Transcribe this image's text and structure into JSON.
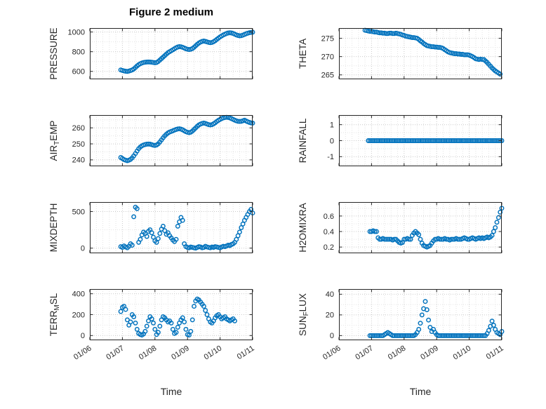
{
  "chart_data": {
    "type": "scatter",
    "title": "Figure 2 medium",
    "xlabel": "Time",
    "layout": "4x2",
    "grid": "on",
    "marker": {
      "shape": "circle",
      "color": "#0072BD"
    },
    "xlim": [
      0,
      5
    ],
    "xtick_values": [
      0,
      1,
      2,
      3,
      4,
      5
    ],
    "xtick_labels": [
      "01/06",
      "01/07",
      "01/08",
      "01/09",
      "01/10",
      "01/11"
    ],
    "xminor_step": 0.2,
    "ylabel_offset": 47,
    "charts": [
      {
        "id": "pressure",
        "ylabel": "PRESSURE",
        "ylabel_parts": [
          {
            "t": "PRESSURE"
          }
        ],
        "ylim": [
          520,
          1040
        ],
        "ytick_values": [
          600,
          800,
          1000
        ],
        "ytick_labels": [
          "600",
          "800",
          "1000"
        ],
        "yminor_step": 100,
        "show_xticklabels": false,
        "x0": 0.95,
        "dx": 0.05,
        "y": [
          615,
          610,
          605,
          602,
          600,
          603,
          608,
          615,
          625,
          640,
          655,
          668,
          678,
          685,
          690,
          693,
          695,
          696,
          695,
          693,
          690,
          688,
          690,
          700,
          715,
          730,
          745,
          760,
          775,
          790,
          800,
          810,
          820,
          830,
          840,
          848,
          852,
          850,
          845,
          838,
          830,
          825,
          822,
          825,
          832,
          845,
          860,
          875,
          888,
          898,
          905,
          908,
          905,
          900,
          895,
          892,
          895,
          902,
          912,
          925,
          938,
          950,
          960,
          970,
          978,
          985,
          990,
          992,
          990,
          985,
          978,
          970,
          965,
          962,
          963,
          968,
          975,
          982,
          988,
          993,
          996,
          998
        ]
      },
      {
        "id": "theta",
        "ylabel": "THETA",
        "ylabel_parts": [
          {
            "t": "THETA"
          }
        ],
        "ylim": [
          263.8,
          277.8
        ],
        "ytick_values": [
          265,
          270,
          275
        ],
        "ytick_labels": [
          "265",
          "270",
          "275"
        ],
        "yminor_step": 2.5,
        "show_xticklabels": false,
        "x0": 0.8,
        "dx": 0.05,
        "y": [
          277.2,
          277.1,
          277.0,
          276.9,
          276.9,
          276.8,
          276.7,
          276.7,
          276.6,
          276.5,
          276.5,
          276.4,
          276.4,
          276.3,
          276.3,
          276.4,
          276.4,
          276.3,
          276.3,
          276.4,
          276.3,
          276.2,
          276.1,
          275.9,
          275.8,
          275.6,
          275.5,
          275.4,
          275.3,
          275.2,
          275.2,
          275.1,
          275.0,
          274.7,
          274.3,
          274.0,
          273.6,
          273.3,
          273.0,
          272.9,
          272.8,
          272.7,
          272.7,
          272.6,
          272.6,
          272.5,
          272.5,
          272.4,
          272.2,
          271.9,
          271.6,
          271.3,
          271.1,
          271.0,
          270.9,
          270.8,
          270.8,
          270.7,
          270.7,
          270.6,
          270.6,
          270.5,
          270.5,
          270.5,
          270.4,
          270.2,
          270.0,
          269.7,
          269.4,
          269.3,
          269.2,
          269.3,
          269.2,
          269.2,
          268.8,
          268.4,
          267.9,
          267.4,
          266.9,
          266.5,
          266.1,
          265.8,
          265.5,
          265.2
        ]
      },
      {
        "id": "airtemp",
        "ylabel": "AIR_TEMP",
        "ylabel_parts": [
          {
            "t": "AIR"
          },
          {
            "t": "T",
            "sub": true
          },
          {
            "t": "EMP"
          }
        ],
        "ylim": [
          236,
          268
        ],
        "ytick_values": [
          240,
          250,
          260
        ],
        "ytick_labels": [
          "240",
          "250",
          "260"
        ],
        "yminor_step": 5,
        "show_xticklabels": false,
        "x0": 0.95,
        "dx": 0.05,
        "y": [
          241.5,
          240.8,
          240.2,
          239.8,
          239.5,
          239.8,
          240.3,
          241.2,
          242.5,
          244,
          245.5,
          247,
          248,
          248.8,
          249.3,
          249.6,
          249.8,
          249.9,
          249.8,
          249.5,
          249.2,
          249,
          249.3,
          250,
          251.2,
          252.5,
          253.8,
          255,
          256,
          256.8,
          257.4,
          257.8,
          258.2,
          258.6,
          259,
          259.3,
          259.4,
          259.2,
          258.8,
          258.2,
          257.6,
          257.2,
          257,
          257.3,
          258,
          259,
          260,
          261,
          261.8,
          262.4,
          262.8,
          263,
          262.8,
          262.4,
          262,
          261.8,
          262,
          262.5,
          263.2,
          264,
          264.7,
          265.3,
          265.8,
          266.2,
          266.5,
          266.6,
          266.5,
          266.2,
          265.8,
          265.3,
          264.8,
          264.4,
          264.1,
          264,
          264.1,
          264.4,
          264.8,
          264.3,
          263.8,
          263.4,
          263.1,
          263
        ]
      },
      {
        "id": "rainfall",
        "ylabel": "RAINFALL",
        "ylabel_parts": [
          {
            "t": "RAINFALL"
          }
        ],
        "ylim": [
          -1.6,
          1.6
        ],
        "ytick_values": [
          -1,
          0,
          1
        ],
        "ytick_labels": [
          "-1",
          "0",
          "1"
        ],
        "yminor_step": 0.5,
        "show_xticklabels": false,
        "x0": 0.9,
        "dx": 0.05,
        "y": [
          0,
          0,
          0,
          0,
          0,
          0,
          0,
          0,
          0,
          0,
          0,
          0,
          0,
          0,
          0,
          0,
          0,
          0,
          0,
          0,
          0,
          0,
          0,
          0,
          0,
          0,
          0,
          0,
          0,
          0,
          0,
          0,
          0,
          0,
          0,
          0,
          0,
          0,
          0,
          0,
          0,
          0,
          0,
          0,
          0,
          0,
          0,
          0,
          0,
          0,
          0,
          0,
          0,
          0,
          0,
          0,
          0,
          0,
          0,
          0,
          0,
          0,
          0,
          0,
          0,
          0,
          0,
          0,
          0,
          0,
          0,
          0,
          0,
          0,
          0,
          0,
          0,
          0,
          0,
          0,
          0,
          0,
          0
        ]
      },
      {
        "id": "mixdepth",
        "ylabel": "MIXDEPTH",
        "ylabel_parts": [
          {
            "t": "MIXDEPTH"
          }
        ],
        "ylim": [
          -70,
          630
        ],
        "ytick_values": [
          0,
          500
        ],
        "ytick_labels": [
          "0",
          "500"
        ],
        "yminor_step": 250,
        "show_xticklabels": false,
        "x0": 0.95,
        "dx": 0.05,
        "y": [
          20,
          10,
          30,
          15,
          5,
          25,
          60,
          40,
          430,
          560,
          540,
          80,
          120,
          180,
          220,
          200,
          160,
          230,
          250,
          210,
          150,
          100,
          80,
          130,
          200,
          260,
          300,
          240,
          190,
          210,
          170,
          140,
          110,
          90,
          120,
          300,
          360,
          420,
          380,
          60,
          20,
          10,
          5,
          15,
          10,
          5,
          0,
          10,
          20,
          15,
          5,
          10,
          25,
          15,
          10,
          5,
          15,
          10,
          20,
          15,
          10,
          5,
          15,
          25,
          20,
          30,
          40,
          35,
          50,
          60,
          80,
          120,
          170,
          220,
          280,
          330,
          380,
          420,
          460,
          500,
          530,
          480
        ]
      },
      {
        "id": "h2omixra",
        "ylabel": "H2OMIXRA",
        "ylabel_parts": [
          {
            "t": "H2OMIXRA"
          }
        ],
        "ylim": [
          0.12,
          0.78
        ],
        "ytick_values": [
          0.2,
          0.4,
          0.6
        ],
        "ytick_labels": [
          "0.2",
          "0.4",
          "0.6"
        ],
        "yminor_step": 0.1,
        "show_xticklabels": false,
        "x0": 0.95,
        "dx": 0.05,
        "y": [
          0.4,
          0.4,
          0.41,
          0.4,
          0.4,
          0.32,
          0.3,
          0.3,
          0.31,
          0.3,
          0.3,
          0.3,
          0.3,
          0.3,
          0.29,
          0.3,
          0.3,
          0.28,
          0.26,
          0.25,
          0.26,
          0.3,
          0.3,
          0.31,
          0.3,
          0.3,
          0.35,
          0.38,
          0.4,
          0.38,
          0.36,
          0.3,
          0.25,
          0.22,
          0.21,
          0.2,
          0.21,
          0.22,
          0.25,
          0.28,
          0.3,
          0.3,
          0.31,
          0.3,
          0.3,
          0.3,
          0.31,
          0.3,
          0.3,
          0.29,
          0.3,
          0.3,
          0.3,
          0.31,
          0.3,
          0.3,
          0.3,
          0.31,
          0.32,
          0.31,
          0.3,
          0.3,
          0.31,
          0.32,
          0.31,
          0.3,
          0.31,
          0.32,
          0.31,
          0.32,
          0.31,
          0.32,
          0.33,
          0.32,
          0.33,
          0.35,
          0.4,
          0.45,
          0.52,
          0.58,
          0.65,
          0.7
        ]
      },
      {
        "id": "terrmsl",
        "ylabel": "TERR_MSL",
        "ylabel_parts": [
          {
            "t": "TERR"
          },
          {
            "t": "M",
            "sub": true
          },
          {
            "t": "SL"
          }
        ],
        "ylim": [
          -45,
          445
        ],
        "ytick_values": [
          0,
          200,
          400
        ],
        "ytick_labels": [
          "0",
          "200",
          "400"
        ],
        "yminor_step": 100,
        "show_xticklabels": true,
        "x0": 0.95,
        "dx": 0.05,
        "y": [
          230,
          270,
          280,
          250,
          150,
          100,
          130,
          200,
          180,
          120,
          60,
          20,
          10,
          5,
          15,
          40,
          90,
          140,
          180,
          160,
          120,
          60,
          10,
          30,
          90,
          150,
          180,
          170,
          150,
          130,
          140,
          120,
          60,
          20,
          30,
          80,
          120,
          150,
          170,
          130,
          60,
          10,
          5,
          40,
          150,
          280,
          330,
          350,
          340,
          320,
          300,
          280,
          240,
          200,
          160,
          130,
          120,
          140,
          170,
          190,
          200,
          180,
          160,
          170,
          180,
          160,
          150,
          140,
          150,
          160,
          140
        ]
      },
      {
        "id": "sunflux",
        "ylabel": "SUN_FLUX",
        "ylabel_parts": [
          {
            "t": "SUN"
          },
          {
            "t": "F",
            "sub": true
          },
          {
            "t": "LUX"
          }
        ],
        "ylim": [
          -4.5,
          45
        ],
        "ytick_values": [
          0,
          20,
          40
        ],
        "ytick_labels": [
          "0",
          "20",
          "40"
        ],
        "yminor_step": 10,
        "show_xticklabels": true,
        "x0": 0.95,
        "dx": 0.05,
        "y": [
          0,
          0,
          0,
          0,
          0,
          0,
          0,
          0,
          0,
          1,
          2,
          3,
          2,
          1,
          0,
          0,
          0,
          0,
          0,
          0,
          0,
          0,
          0,
          0,
          0,
          0,
          0,
          0,
          1,
          3,
          6,
          12,
          20,
          26,
          33,
          25,
          15,
          8,
          4,
          6,
          3,
          1,
          0,
          0,
          0,
          0,
          0,
          0,
          0,
          0,
          0,
          0,
          0,
          0,
          0,
          0,
          0,
          0,
          0,
          0,
          0,
          0,
          0,
          0,
          0,
          0,
          0,
          0,
          0,
          0,
          0,
          0,
          2,
          5,
          9,
          14,
          10,
          6,
          3,
          2,
          1,
          4
        ]
      }
    ]
  }
}
